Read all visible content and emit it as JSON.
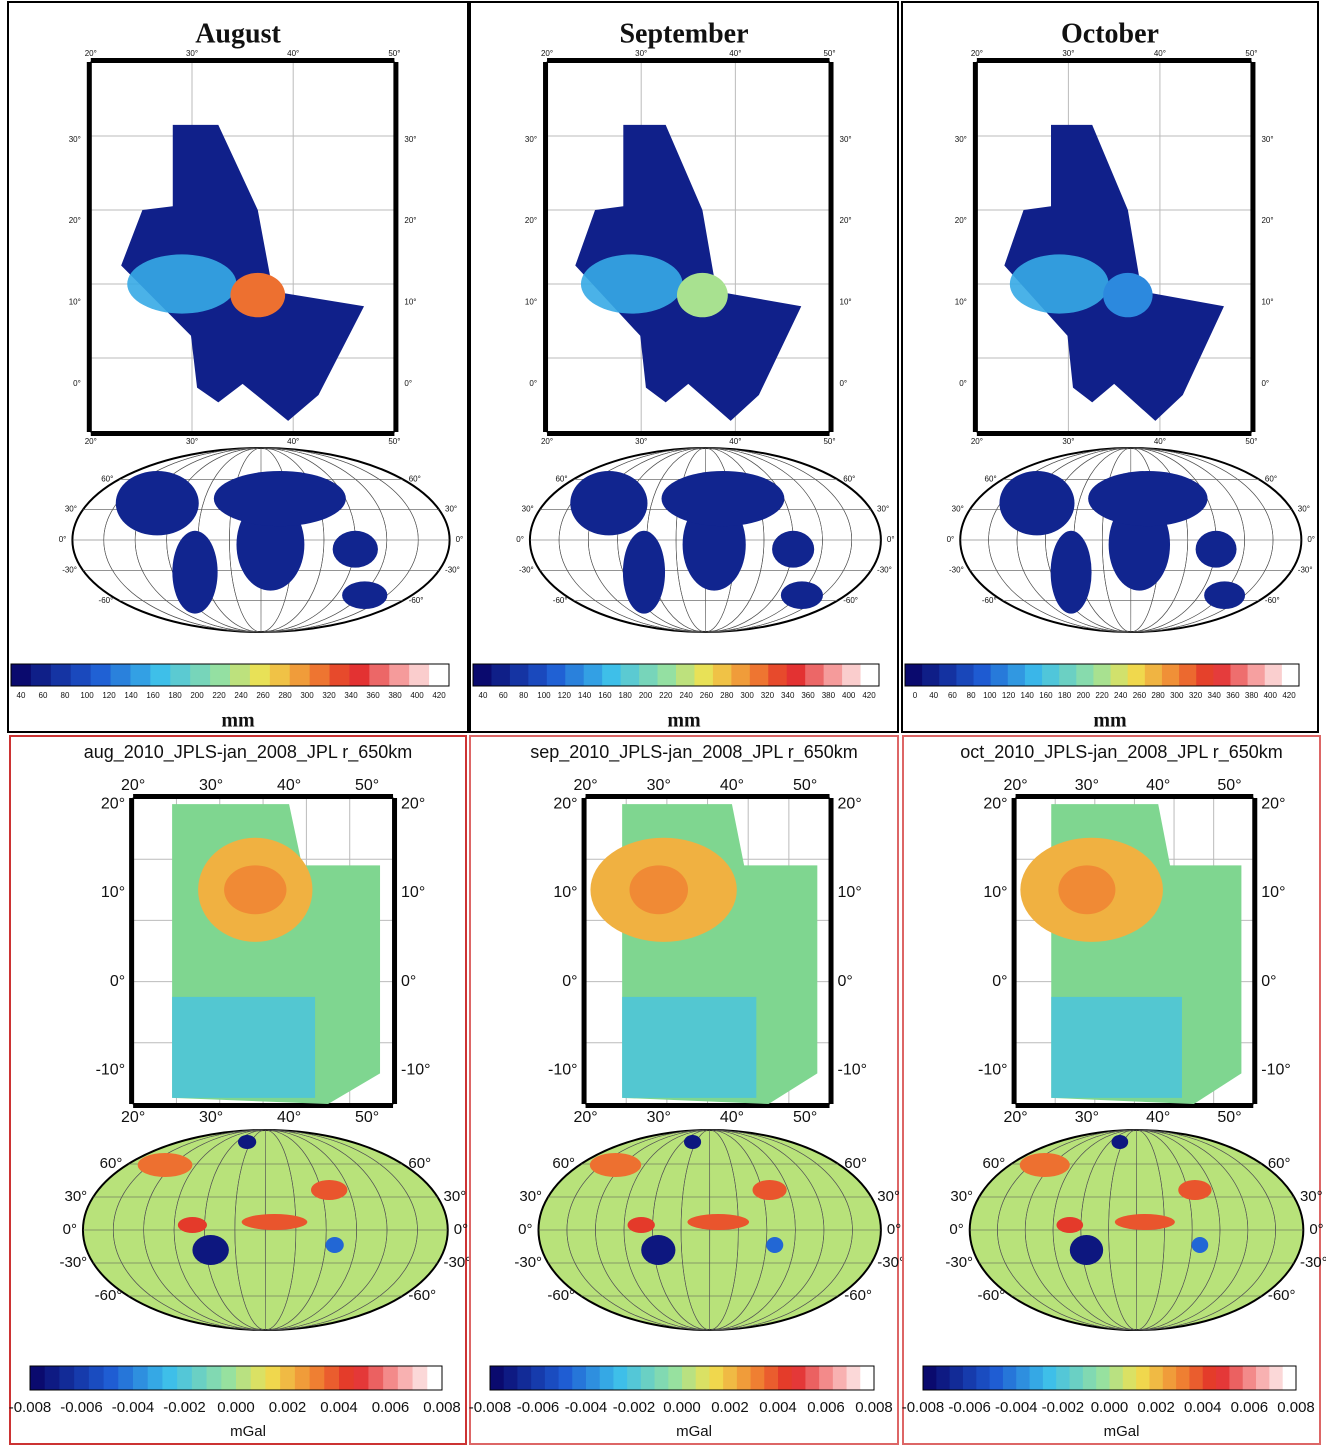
{
  "rainfall_panels": [
    {
      "title": "August",
      "colorbar_ticks": [
        "40",
        "60",
        "80",
        "100",
        "120",
        "140",
        "160",
        "180",
        "200",
        "220",
        "240",
        "260",
        "280",
        "300",
        "320",
        "340",
        "360",
        "380",
        "400",
        "420"
      ],
      "unit": "mm"
    },
    {
      "title": "September",
      "colorbar_ticks": [
        "40",
        "60",
        "80",
        "100",
        "120",
        "140",
        "160",
        "180",
        "200",
        "220",
        "240",
        "260",
        "280",
        "300",
        "320",
        "340",
        "360",
        "380",
        "400",
        "420"
      ],
      "unit": "mm"
    },
    {
      "title": "October",
      "colorbar_ticks": [
        "0",
        "40",
        "60",
        "80",
        "100",
        "120",
        "140",
        "160",
        "180",
        "200",
        "220",
        "240",
        "260",
        "280",
        "300",
        "320",
        "340",
        "360",
        "380",
        "400",
        "420"
      ],
      "unit": "mm"
    }
  ],
  "rainfall_map_labels": {
    "lon": [
      "20°",
      "30°",
      "40°",
      "50°"
    ],
    "lat": [
      "0°",
      "10°",
      "20°",
      "30°"
    ],
    "globe_lat": [
      "60°",
      "30°",
      "0°",
      "-30°",
      "-60°"
    ]
  },
  "gravity_panels": [
    {
      "title": "aug_2010_JPLS-jan_2008_JPL r_650km"
    },
    {
      "title": "sep_2010_JPLS-jan_2008_JPL r_650km"
    },
    {
      "title": "oct_2010_JPLS-jan_2008_JPL r_650km"
    }
  ],
  "gravity_colorbar": {
    "ticks": [
      "-0.008",
      "-0.006",
      "-0.004",
      "-0.002",
      "0.000",
      "0.002",
      "0.004",
      "0.006",
      "0.008"
    ],
    "unit": "mGal"
  },
  "gravity_map_labels": {
    "lon": [
      "20°",
      "30°",
      "40°",
      "50°"
    ],
    "lat": [
      "20°",
      "10°",
      "0°",
      "-10°"
    ],
    "globe_lat": [
      "60°",
      "30°",
      "0°",
      "-30°",
      "-60°"
    ]
  }
}
